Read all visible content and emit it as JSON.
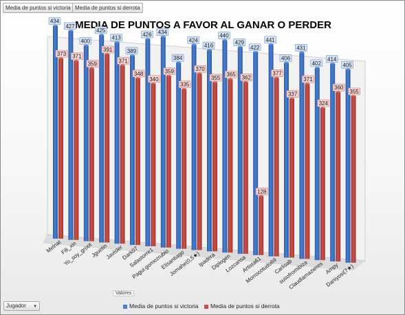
{
  "header": {
    "field_buttons": [
      "Media de puntos si victoria",
      "Media de puntos si derrota"
    ]
  },
  "footer": {
    "values_label": "Valores",
    "filter_label": "Jugador",
    "filter_arrow": "▼"
  },
  "chart_data": {
    "type": "bar",
    "title": "MEDIA DE PUNTOS A FAVOR AL GANAR O PERDER",
    "categories": [
      "Melnat",
      "Fili_xin",
      "Yo_soy_groot",
      "Jguetin",
      "Javisler",
      "Dark07",
      "Salastorre1",
      "Pagui.gomezrubio",
      "Elisantiago",
      "Jomahe(0,5★)",
      "Ipadera",
      "Diplogen",
      "Lozcansa",
      "Artista61",
      "Morrocotudo69",
      "Carlisab",
      "susofromibiza",
      "Claudiamazieres",
      "Ampy",
      "Daniyosi(7★)"
    ],
    "series": [
      {
        "name": "Media de puntos si victoria",
        "color": "#4a80cc",
        "values": [
          434,
          427,
          400,
          425,
          413,
          389,
          426,
          434,
          384,
          424,
          416,
          440,
          429,
          422,
          441,
          406,
          431,
          402,
          414,
          405
        ]
      },
      {
        "name": "Media de puntos si derrota",
        "color": "#c8504a",
        "values": [
          373,
          371,
          359,
          391,
          371,
          348,
          340,
          359,
          335,
          370,
          355,
          365,
          362,
          128,
          377,
          337,
          371,
          324,
          360,
          355
        ]
      }
    ],
    "legend_position": "bottom",
    "grid": false,
    "ylim": [
      0,
      460
    ]
  }
}
